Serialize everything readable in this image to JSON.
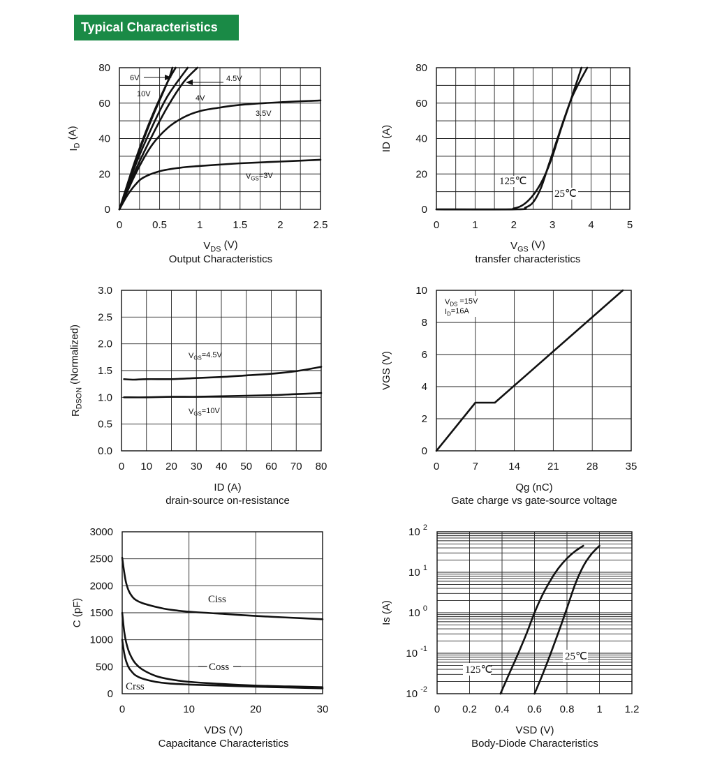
{
  "banner": {
    "title": "Typical Characteristics",
    "bg_color": "#1a8a46",
    "text_color": "#ffffff"
  },
  "chart_data": [
    {
      "id": "output",
      "type": "line",
      "title": "Output Characteristics",
      "xlabel": "V_DS (V)",
      "ylabel": "I_D (A)",
      "xlim": [
        0,
        2.5
      ],
      "ylim": [
        0,
        80
      ],
      "xticks": [
        0,
        0.5,
        1,
        1.5,
        2,
        2.5
      ],
      "xtick_labels": [
        "0",
        "0.5",
        "1",
        "1.5",
        "2",
        "2.5"
      ],
      "yticks": [
        0,
        20,
        40,
        60,
        80
      ],
      "ytick_labels": [
        "0",
        "20",
        "40",
        "60",
        "80"
      ],
      "grid": true,
      "series": [
        {
          "name": "VGS=3V",
          "x": [
            0,
            0.1,
            0.2,
            0.3,
            0.5,
            0.75,
            1.0,
            1.5,
            2.0,
            2.5
          ],
          "y": [
            0,
            8,
            14,
            18,
            21.5,
            23.5,
            24.5,
            26,
            27,
            28
          ]
        },
        {
          "name": "3.5V",
          "x": [
            0,
            0.2,
            0.4,
            0.6,
            0.8,
            1.0,
            1.25,
            1.5,
            2.0,
            2.5
          ],
          "y": [
            0,
            20,
            36,
            46,
            52,
            55.5,
            57.5,
            59,
            60.5,
            61.5
          ]
        },
        {
          "name": "4V",
          "x": [
            0,
            0.2,
            0.4,
            0.6,
            0.8,
            0.97
          ],
          "y": [
            0,
            22,
            41,
            58,
            72,
            80
          ]
        },
        {
          "name": "4.5V",
          "x": [
            0,
            0.2,
            0.4,
            0.6,
            0.85
          ],
          "y": [
            0,
            25,
            46,
            64,
            80
          ]
        },
        {
          "name": "10V",
          "x": [
            0,
            0.2,
            0.4,
            0.6,
            0.7
          ],
          "y": [
            0,
            28,
            52,
            72,
            80
          ]
        },
        {
          "name": "6V",
          "x": [
            0,
            0.2,
            0.4,
            0.6,
            0.66
          ],
          "y": [
            0,
            27,
            51,
            72,
            80
          ]
        }
      ],
      "annotations": [
        "6V",
        "10V",
        "4.5V",
        "4V",
        "3.5V",
        "VGS=3V"
      ]
    },
    {
      "id": "transfer",
      "type": "line",
      "title": "transfer characteristics",
      "xlabel": "V_GS (V)",
      "ylabel": "ID (A)",
      "xlim": [
        0,
        5
      ],
      "ylim": [
        0,
        80
      ],
      "xticks": [
        0,
        1,
        2,
        3,
        4,
        5
      ],
      "xtick_labels": [
        "0",
        "1",
        "2",
        "3",
        "4",
        "5"
      ],
      "yticks": [
        0,
        20,
        40,
        60,
        80
      ],
      "ytick_labels": [
        "0",
        "20",
        "40",
        "60",
        "80"
      ],
      "grid": true,
      "series": [
        {
          "name": "125℃",
          "x": [
            0,
            1.8,
            2.0,
            2.2,
            2.4,
            2.6,
            2.8,
            3.0,
            3.2,
            3.4,
            3.6,
            3.75
          ],
          "y": [
            0,
            0,
            0.5,
            2,
            5.5,
            11,
            19,
            30,
            44,
            57,
            70,
            80
          ]
        },
        {
          "name": "25℃",
          "x": [
            0,
            2.1,
            2.3,
            2.5,
            2.7,
            2.9,
            3.1,
            3.3,
            3.5,
            3.7,
            3.9
          ],
          "y": [
            0,
            0,
            1,
            4,
            12,
            25,
            38,
            51,
            63,
            72,
            80
          ]
        }
      ],
      "annotations": [
        "125℃",
        "25℃"
      ]
    },
    {
      "id": "rdson",
      "type": "line",
      "title": "drain-source on-resistance",
      "xlabel": "ID (A)",
      "ylabel": "R_DSON (Normalized)",
      "xlim": [
        0,
        80
      ],
      "ylim": [
        0,
        3.0
      ],
      "xticks": [
        0,
        10,
        20,
        30,
        40,
        50,
        60,
        70,
        80
      ],
      "xtick_labels": [
        "0",
        "10",
        "20",
        "30",
        "40",
        "50",
        "60",
        "70",
        "80"
      ],
      "yticks": [
        0,
        0.5,
        1.0,
        1.5,
        2.0,
        2.5,
        3.0
      ],
      "ytick_labels": [
        "0.0",
        "0.5",
        "1.0",
        "1.5",
        "2.0",
        "2.5",
        "3.0"
      ],
      "grid": true,
      "series": [
        {
          "name": "VGS=4.5V",
          "x": [
            1,
            5,
            10,
            20,
            30,
            40,
            50,
            60,
            70,
            80
          ],
          "y": [
            1.34,
            1.33,
            1.34,
            1.34,
            1.36,
            1.38,
            1.41,
            1.44,
            1.49,
            1.57
          ]
        },
        {
          "name": "VGS=10V",
          "x": [
            1,
            10,
            20,
            30,
            40,
            50,
            60,
            70,
            80
          ],
          "y": [
            1.0,
            1.0,
            1.01,
            1.01,
            1.02,
            1.03,
            1.04,
            1.06,
            1.08
          ]
        }
      ],
      "annotations": [
        "VGS=4.5V",
        "VGS=10V"
      ]
    },
    {
      "id": "gatecharge",
      "type": "line",
      "title": "Gate charge vs gate-source voltage",
      "xlabel": "Qg (nC)",
      "ylabel": "VGS (V)",
      "xlim": [
        0,
        35
      ],
      "ylim": [
        0,
        10
      ],
      "xticks": [
        0,
        7,
        14,
        21,
        28,
        35
      ],
      "xtick_labels": [
        "0",
        "7",
        "14",
        "21",
        "28",
        "35"
      ],
      "yticks": [
        0,
        2,
        4,
        6,
        8,
        10
      ],
      "ytick_labels": [
        "0",
        "2",
        "4",
        "6",
        "8",
        "10"
      ],
      "grid": true,
      "series": [
        {
          "name": "",
          "x": [
            0,
            7,
            10.5,
            33.5
          ],
          "y": [
            0,
            3,
            3,
            10
          ]
        }
      ],
      "annotations": [
        "VDS =15V",
        "ID=16A"
      ]
    },
    {
      "id": "capacitance",
      "type": "line",
      "title": "Capacitance Characteristics",
      "xlabel": "VDS (V)",
      "ylabel": "C (pF)",
      "xlim": [
        0,
        30
      ],
      "ylim": [
        0,
        3000
      ],
      "xticks": [
        0,
        10,
        20,
        30
      ],
      "xtick_labels": [
        "0",
        "10",
        "20",
        "30"
      ],
      "yticks": [
        0,
        500,
        1000,
        1500,
        2000,
        2500,
        3000
      ],
      "ytick_labels": [
        "0",
        "500",
        "1000",
        "1500",
        "2000",
        "2500",
        "3000"
      ],
      "grid": true,
      "series": [
        {
          "name": "Ciss",
          "x": [
            0,
            0.3,
            0.6,
            1,
            1.5,
            2,
            3,
            5,
            7,
            10,
            15,
            20,
            25,
            30
          ],
          "y": [
            2520,
            2250,
            2050,
            1900,
            1800,
            1740,
            1680,
            1610,
            1560,
            1520,
            1480,
            1440,
            1410,
            1380
          ]
        },
        {
          "name": "Coss",
          "x": [
            0,
            0.3,
            0.6,
            1,
            1.5,
            2,
            3,
            5,
            7,
            10,
            15,
            20,
            25,
            30
          ],
          "y": [
            1500,
            1150,
            950,
            780,
            650,
            560,
            450,
            330,
            270,
            220,
            180,
            150,
            135,
            120
          ]
        },
        {
          "name": "Crss",
          "x": [
            0,
            0.3,
            0.6,
            1,
            1.5,
            2,
            3,
            5,
            7,
            10,
            15,
            20,
            25,
            30
          ],
          "y": [
            1000,
            750,
            600,
            480,
            400,
            340,
            280,
            220,
            190,
            170,
            150,
            130,
            115,
            100
          ]
        }
      ],
      "annotations": [
        "Ciss",
        "Coss",
        "Crss"
      ]
    },
    {
      "id": "bodydiode",
      "type": "line",
      "title": "Body-Diode Characteristics",
      "xlabel": "VSD (V)",
      "ylabel": "Is (A)",
      "xlim": [
        0,
        1.2
      ],
      "ylim": [
        0.01,
        100
      ],
      "yscale": "log",
      "xticks": [
        0,
        0.2,
        0.4,
        0.6,
        0.8,
        1,
        1.2
      ],
      "xtick_labels": [
        "0",
        "0.2",
        "0.4",
        "0.6",
        "0.8",
        "1",
        "1.2"
      ],
      "ytick_labels": [
        {
          "base": "10",
          "exp": "-2"
        },
        {
          "base": "10",
          "exp": "-1"
        },
        {
          "base": "10",
          "exp": "0"
        },
        {
          "base": "10",
          "exp": "1"
        },
        {
          "base": "10",
          "exp": "2"
        }
      ],
      "grid": true,
      "series": [
        {
          "name": "125℃",
          "x": [
            0.39,
            0.45,
            0.5,
            0.55,
            0.6,
            0.65,
            0.7,
            0.75,
            0.8,
            0.85,
            0.9
          ],
          "y": [
            0.01,
            0.035,
            0.1,
            0.3,
            1.0,
            2.8,
            6.5,
            13,
            22,
            33,
            45
          ]
        },
        {
          "name": "25℃",
          "x": [
            0.6,
            0.65,
            0.7,
            0.75,
            0.8,
            0.85,
            0.9,
            0.95,
            1.0
          ],
          "y": [
            0.01,
            0.03,
            0.1,
            0.35,
            1.3,
            5,
            14,
            28,
            45
          ]
        }
      ],
      "annotations": [
        "125℃",
        "25℃"
      ]
    }
  ]
}
